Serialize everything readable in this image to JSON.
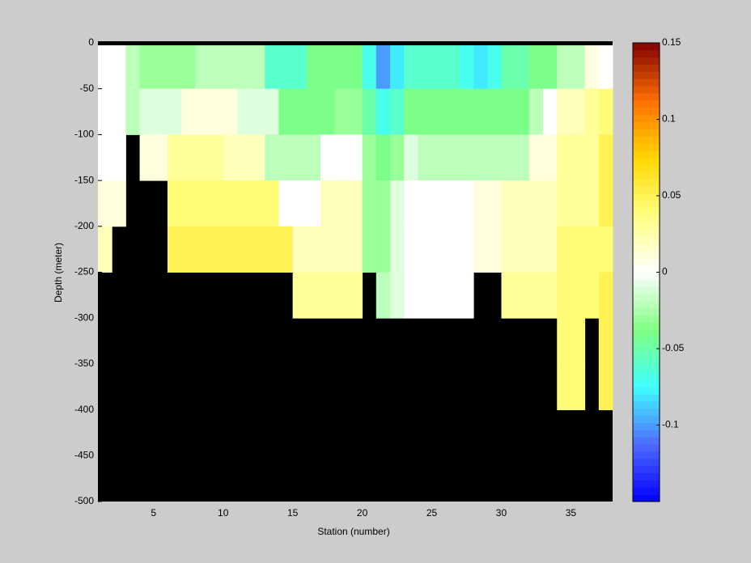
{
  "chart_data": {
    "type": "heatmap",
    "xlabel": "Station (number)",
    "ylabel": "Depth (meter)",
    "xlim": [
      1,
      38
    ],
    "ylim": [
      -500,
      0
    ],
    "xticks": [
      5,
      10,
      15,
      20,
      25,
      30,
      35
    ],
    "yticks": [
      0,
      -50,
      -100,
      -150,
      -200,
      -250,
      -300,
      -350,
      -400,
      -450,
      -500
    ],
    "x": [
      1,
      2,
      3,
      4,
      5,
      6,
      7,
      8,
      9,
      10,
      11,
      12,
      13,
      14,
      15,
      16,
      17,
      18,
      19,
      20,
      21,
      22,
      23,
      24,
      25,
      26,
      27,
      28,
      29,
      30,
      31,
      32,
      33,
      34,
      35,
      36,
      37
    ],
    "y": [
      0,
      -50,
      -100,
      -150,
      -200,
      -250,
      -300,
      -350
    ],
    "ystep": -50,
    "clim": [
      -0.15,
      0.15
    ],
    "cticks": [
      -0.1,
      -0.05,
      0,
      0.05,
      0.1,
      0.15
    ],
    "colormap": [
      "#0000ff",
      "#4f6bff",
      "#3fffff",
      "#80ff80",
      "#ffffff",
      "#ffff80",
      "#ffd700",
      "#ff7000",
      "#800000"
    ],
    "nan_color": "#000000",
    "values": [
      [
        0.0,
        0.0,
        -0.02,
        -0.03,
        -0.03,
        -0.03,
        -0.03,
        -0.02,
        -0.02,
        -0.02,
        -0.02,
        -0.02,
        -0.06,
        -0.06,
        -0.06,
        -0.04,
        -0.04,
        -0.04,
        -0.04,
        -0.07,
        -0.1,
        -0.08,
        -0.06,
        -0.06,
        -0.06,
        -0.06,
        -0.07,
        -0.08,
        -0.07,
        -0.05,
        -0.05,
        -0.04,
        -0.04,
        -0.02,
        -0.02,
        0.01,
        0.0
      ],
      [
        0.0,
        0.0,
        -0.02,
        -0.01,
        -0.01,
        -0.01,
        0.01,
        0.01,
        0.01,
        0.01,
        -0.01,
        -0.01,
        -0.01,
        -0.04,
        -0.04,
        -0.04,
        -0.04,
        -0.03,
        -0.03,
        -0.05,
        -0.07,
        -0.06,
        -0.04,
        -0.04,
        -0.04,
        -0.04,
        -0.04,
        -0.04,
        -0.04,
        -0.04,
        -0.04,
        -0.02,
        0.0,
        0.02,
        0.02,
        0.03,
        0.04
      ],
      [
        0.0,
        0.0,
        null,
        0.01,
        0.01,
        0.03,
        0.03,
        0.03,
        0.03,
        0.02,
        0.02,
        0.02,
        -0.02,
        -0.02,
        -0.02,
        -0.02,
        0.0,
        0.0,
        0.0,
        -0.03,
        -0.04,
        -0.03,
        -0.01,
        -0.02,
        -0.02,
        -0.02,
        -0.02,
        -0.02,
        -0.02,
        -0.02,
        -0.02,
        0.01,
        0.01,
        0.03,
        0.03,
        0.03,
        0.05
      ],
      [
        0.01,
        0.01,
        null,
        null,
        null,
        0.04,
        0.04,
        0.04,
        0.04,
        0.04,
        0.04,
        0.04,
        0.04,
        0.0,
        0.0,
        0.0,
        0.02,
        0.02,
        0.02,
        -0.03,
        -0.03,
        -0.01,
        0.0,
        0.0,
        0.0,
        0.0,
        0.0,
        0.01,
        0.01,
        0.02,
        0.02,
        0.02,
        0.02,
        0.03,
        0.03,
        0.03,
        0.05
      ],
      [
        0.02,
        null,
        null,
        null,
        null,
        0.05,
        0.05,
        0.05,
        0.05,
        0.05,
        0.05,
        0.05,
        0.05,
        0.05,
        0.02,
        0.02,
        0.02,
        0.02,
        0.02,
        -0.03,
        -0.03,
        -0.01,
        0.0,
        0.0,
        0.0,
        0.0,
        0.0,
        0.01,
        0.01,
        0.02,
        0.02,
        0.02,
        0.02,
        0.04,
        0.04,
        0.04,
        0.04
      ],
      [
        null,
        null,
        null,
        null,
        null,
        null,
        null,
        null,
        null,
        null,
        null,
        null,
        null,
        null,
        0.03,
        0.03,
        0.03,
        0.03,
        0.03,
        null,
        -0.02,
        -0.01,
        0.0,
        0.0,
        0.0,
        0.0,
        0.0,
        null,
        null,
        0.03,
        0.03,
        0.03,
        0.03,
        0.04,
        0.04,
        0.04,
        0.05
      ],
      [
        null,
        null,
        null,
        null,
        null,
        null,
        null,
        null,
        null,
        null,
        null,
        null,
        null,
        null,
        null,
        null,
        null,
        null,
        null,
        null,
        null,
        null,
        null,
        null,
        null,
        null,
        null,
        null,
        null,
        null,
        null,
        null,
        null,
        0.04,
        0.04,
        null,
        0.05
      ],
      [
        null,
        null,
        null,
        null,
        null,
        null,
        null,
        null,
        null,
        null,
        null,
        null,
        null,
        null,
        null,
        null,
        null,
        null,
        null,
        null,
        null,
        null,
        null,
        null,
        null,
        null,
        null,
        null,
        null,
        null,
        null,
        null,
        null,
        0.04,
        0.04,
        null,
        0.05
      ]
    ]
  }
}
